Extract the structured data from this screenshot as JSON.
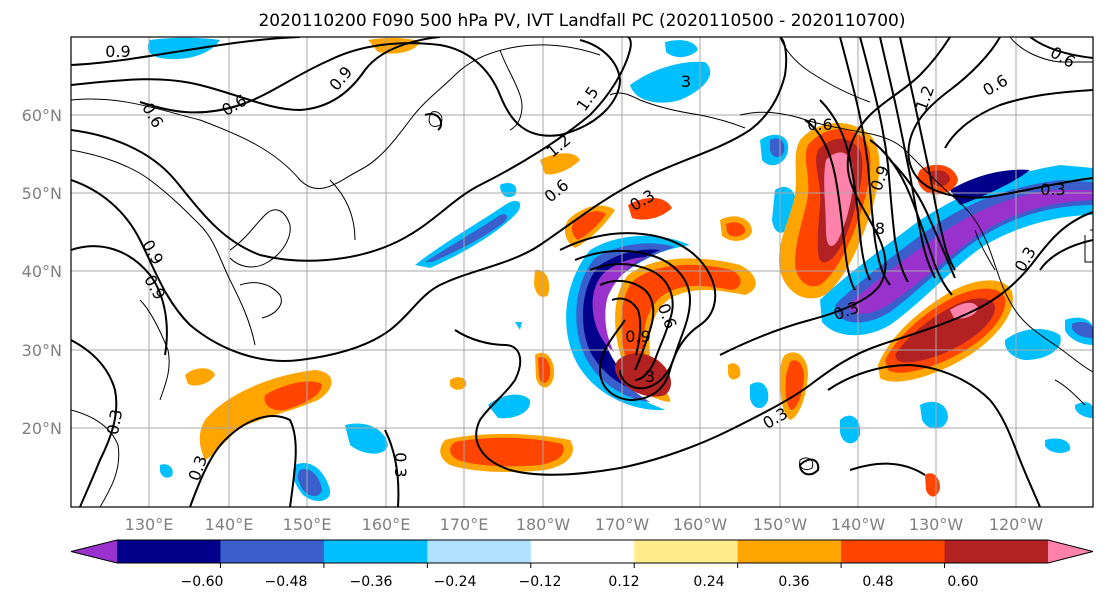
{
  "title": "2020110200 F090 500 hPa PV, IVT Landfall PC (2020110500 - 2020110700)",
  "map": {
    "lat_labels": [
      "60°N",
      "50°N",
      "40°N",
      "30°N",
      "20°N"
    ],
    "lon_labels": [
      "130°E",
      "140°E",
      "150°E",
      "160°E",
      "170°E",
      "180°W",
      "170°W",
      "160°W",
      "150°W",
      "140°W",
      "130°W",
      "120°W"
    ],
    "contour_labels": [
      "0.9",
      "0.6",
      "0.9",
      "0.6",
      "0.9",
      "1.5",
      "1.2",
      "0.6",
      "0.3",
      "0.9",
      "0.6",
      "0.9",
      "0.3",
      "0.3",
      "0.3",
      "0.3",
      "0.3",
      "0.3",
      "0.6",
      "0.6",
      "1.2",
      "0.3",
      "0.6",
      "0.9",
      "3",
      "3",
      "8"
    ]
  },
  "colorbar": {
    "colors": [
      "#9932cc",
      "#00008b",
      "#3a5fcd",
      "#00bfff",
      "#b0e2ff",
      "#ffffff",
      "#ffec8b",
      "#ffa500",
      "#ff4500",
      "#b22222",
      "#ff82ab"
    ],
    "tick_labels": [
      "−0.60",
      "−0.48",
      "−0.36",
      "−0.24",
      "−0.12",
      "0.12",
      "0.24",
      "0.36",
      "0.48",
      "0.60"
    ]
  }
}
